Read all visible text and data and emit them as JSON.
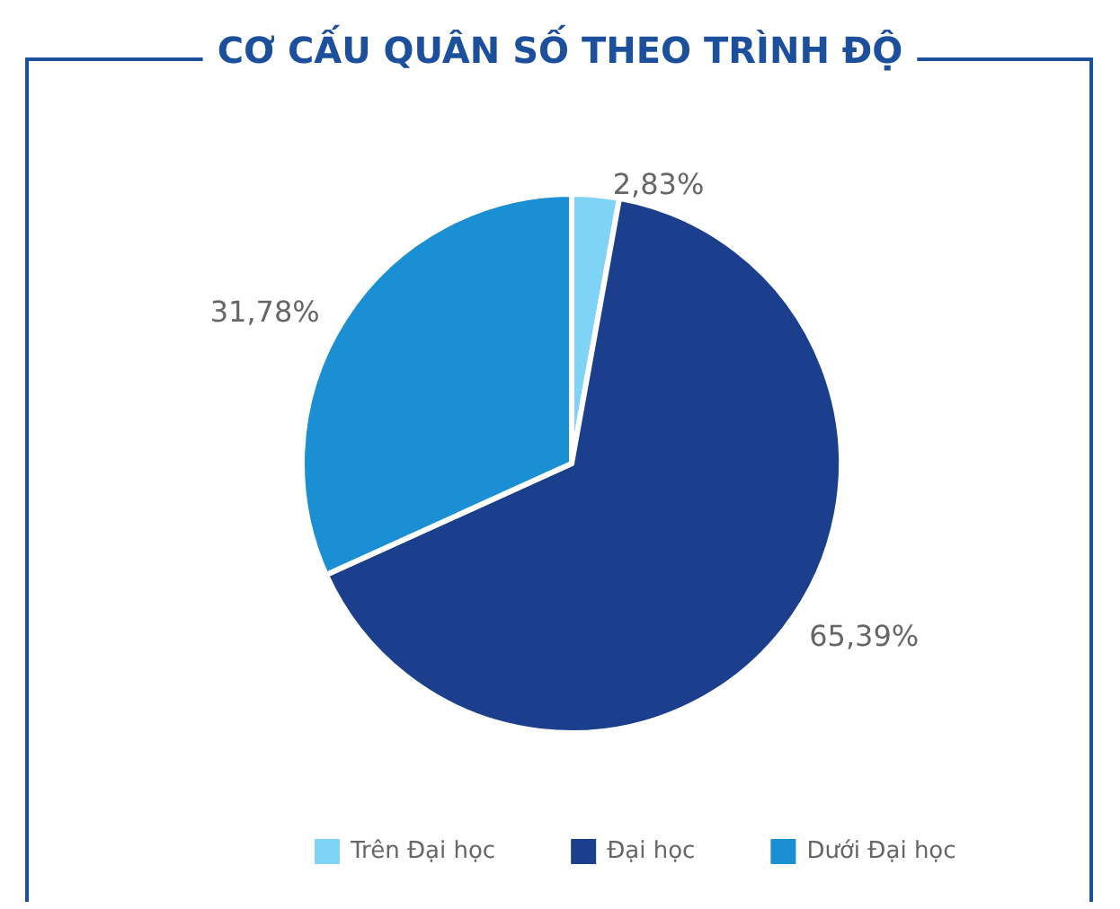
{
  "chart_data": {
    "type": "pie",
    "title": "CƠ CẤU QUÂN SỐ THEO TRÌNH ĐỘ",
    "categories": [
      "Trên Đại học",
      "Đại học",
      "Dưới Đại học"
    ],
    "values": [
      2.83,
      65.39,
      31.78
    ],
    "colors": [
      "#7fd3f5",
      "#1b3f8c",
      "#1a8fd3"
    ],
    "value_labels": [
      "2,83%",
      "65,39%",
      "31,78%"
    ],
    "legend": "bottom"
  }
}
